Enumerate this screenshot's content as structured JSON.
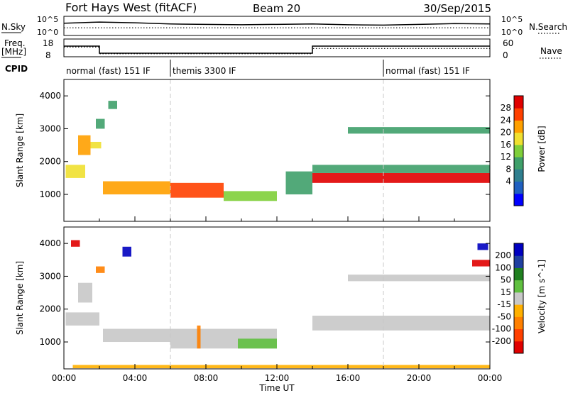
{
  "header": {
    "station": "Fort Hays West (fitACF)",
    "beam": "Beam 20",
    "date": "30/Sep/2015"
  },
  "labels": {
    "nsky": "N.Sky",
    "nsearch": "N.Search",
    "freq_line1": "Freq.",
    "freq_line2": "[MHz]",
    "nave": "Nave",
    "cpid": "CPID",
    "nsky_ticks": [
      "10^5",
      "10^0"
    ],
    "nsearch_ticks": [
      "10^5",
      "10^0"
    ],
    "freq_ticks": [
      "18",
      "8"
    ],
    "nave_ticks": [
      "60",
      "0"
    ]
  },
  "cpid_segments": [
    {
      "label": "normal (fast) 151 IF",
      "start_hour": 0,
      "end_hour": 6
    },
    {
      "label": "themis 3300 IF",
      "start_hour": 6,
      "end_hour": 18
    },
    {
      "label": "normal (fast) 151 IF",
      "start_hour": 18,
      "end_hour": 24
    }
  ],
  "chart_data": [
    {
      "type": "line",
      "panel": "noise",
      "series": [
        {
          "name": "N.Sky",
          "x_hours": [
            0,
            2,
            4,
            6,
            8,
            10,
            12,
            14,
            16,
            18,
            20,
            22,
            24
          ],
          "values": [
            3.2,
            3.5,
            3.3,
            3.0,
            2.9,
            2.8,
            2.9,
            3.0,
            2.8,
            2.7,
            2.9,
            3.1,
            3.0
          ]
        },
        {
          "name": "N.Search",
          "x_hours": [
            0,
            2,
            4,
            6,
            8,
            10,
            12,
            14,
            16,
            18,
            20,
            22,
            24
          ],
          "values": [
            2.0,
            2.0,
            2.0,
            2.0,
            2.0,
            2.0,
            2.0,
            2.0,
            2.0,
            2.0,
            2.0,
            2.0,
            2.0
          ]
        }
      ],
      "ylim": [
        0,
        5
      ]
    },
    {
      "type": "line",
      "panel": "frequency-nave",
      "series": [
        {
          "name": "Freq.",
          "x_hours": [
            0,
            2,
            2,
            14,
            14,
            24
          ],
          "values": [
            14,
            14,
            10,
            10,
            14,
            14
          ]
        },
        {
          "name": "Nave",
          "x_hours": [
            0,
            2,
            2,
            14,
            14,
            24
          ],
          "values": [
            33,
            33,
            10,
            10,
            28,
            28
          ]
        }
      ],
      "ylim_freq": [
        8,
        18
      ],
      "ylim_nave": [
        0,
        60
      ]
    },
    {
      "type": "heatmap",
      "panel": "power",
      "xlabel": "",
      "ylabel": "Slant Range [km]",
      "y_ticks": [
        1000,
        2000,
        3000,
        4000
      ],
      "ylim": [
        180,
        4500
      ],
      "colorbar_label": "Power [dB]",
      "colorbar_ticks": [
        "28",
        "24",
        "20",
        "16",
        "12",
        "8",
        "4"
      ],
      "colorbar_colors": [
        "#0000ff",
        "#2060c0",
        "#2f7f8f",
        "#3fa06a",
        "#7fcf3a",
        "#f0e030",
        "#ffa000",
        "#ff4000",
        "#e00000"
      ],
      "regions": [
        {
          "t0": 0.1,
          "t1": 1.2,
          "r0": 1500,
          "r1": 1900,
          "level": 5
        },
        {
          "t0": 0.8,
          "t1": 1.5,
          "r0": 2200,
          "r1": 2800,
          "level": 6
        },
        {
          "t0": 1.5,
          "t1": 2.1,
          "r0": 2400,
          "r1": 2600,
          "level": 5
        },
        {
          "t0": 2.2,
          "t1": 6.0,
          "r0": 1000,
          "r1": 1400,
          "level": 6
        },
        {
          "t0": 6.0,
          "t1": 9.0,
          "r0": 900,
          "r1": 1350,
          "level": 7
        },
        {
          "t0": 9.0,
          "t1": 12.0,
          "r0": 800,
          "r1": 1100,
          "level": 4
        },
        {
          "t0": 12.5,
          "t1": 14.0,
          "r0": 1000,
          "r1": 1700,
          "level": 3
        },
        {
          "t0": 14.0,
          "t1": 24.0,
          "r0": 1350,
          "r1": 1650,
          "level": 8
        },
        {
          "t0": 14.0,
          "t1": 24.0,
          "r0": 1650,
          "r1": 1900,
          "level": 3
        },
        {
          "t0": 16.0,
          "t1": 24.0,
          "r0": 2850,
          "r1": 3050,
          "level": 3
        },
        {
          "t0": 2.5,
          "t1": 3.0,
          "r0": 3600,
          "r1": 3850,
          "level": 3
        },
        {
          "t0": 1.8,
          "t1": 2.3,
          "r0": 3000,
          "r1": 3300,
          "level": 3
        }
      ]
    },
    {
      "type": "heatmap",
      "panel": "velocity",
      "xlabel": "Time UT",
      "ylabel": "Slant Range [km]",
      "x_ticks": [
        "00:00",
        "04:00",
        "08:00",
        "12:00",
        "16:00",
        "20:00",
        "00:00"
      ],
      "y_ticks": [
        1000,
        2000,
        3000,
        4000
      ],
      "ylim": [
        180,
        4500
      ],
      "colorbar_label": "Velocity [m s^-1]",
      "colorbar_ticks": [
        "200",
        "100",
        "50",
        "15",
        "-15",
        "-50",
        "-100",
        "-200"
      ],
      "colorbar_colors": [
        "#e00000",
        "#ff4000",
        "#ff8000",
        "#ffb000",
        "#c8c8c8",
        "#60c040",
        "#208020",
        "#2040a0",
        "#0000c0"
      ],
      "regions": [
        {
          "t0": 0.1,
          "t1": 2.0,
          "r0": 1500,
          "r1": 1900,
          "level": 4
        },
        {
          "t0": 0.8,
          "t1": 1.6,
          "r0": 2200,
          "r1": 2800,
          "level": 4
        },
        {
          "t0": 2.2,
          "t1": 6.0,
          "r0": 1000,
          "r1": 1400,
          "level": 4
        },
        {
          "t0": 6.0,
          "t1": 12.0,
          "r0": 800,
          "r1": 1400,
          "level": 4
        },
        {
          "t0": 9.8,
          "t1": 12.0,
          "r0": 800,
          "r1": 1100,
          "level": 5
        },
        {
          "t0": 14.0,
          "t1": 24.0,
          "r0": 1350,
          "r1": 1800,
          "level": 4
        },
        {
          "t0": 16.0,
          "t1": 24.0,
          "r0": 2850,
          "r1": 3050,
          "level": 4
        },
        {
          "t0": 0.4,
          "t1": 0.9,
          "r0": 3900,
          "r1": 4100,
          "level": 0
        },
        {
          "t0": 3.3,
          "t1": 3.8,
          "r0": 3600,
          "r1": 3900,
          "level": 8
        },
        {
          "t0": 1.8,
          "t1": 2.3,
          "r0": 3100,
          "r1": 3300,
          "level": 2
        },
        {
          "t0": 7.5,
          "t1": 7.7,
          "r0": 800,
          "r1": 1500,
          "level": 2
        },
        {
          "t0": 0.5,
          "t1": 24.0,
          "r0": 200,
          "r1": 300,
          "level": 3
        },
        {
          "t0": 23.0,
          "t1": 24.0,
          "r0": 3300,
          "r1": 3500,
          "level": 0
        },
        {
          "t0": 23.3,
          "t1": 23.9,
          "r0": 3800,
          "r1": 4000,
          "level": 8
        }
      ]
    }
  ],
  "colors": {
    "axes": "#000000",
    "dash": "#c8c8c8"
  }
}
